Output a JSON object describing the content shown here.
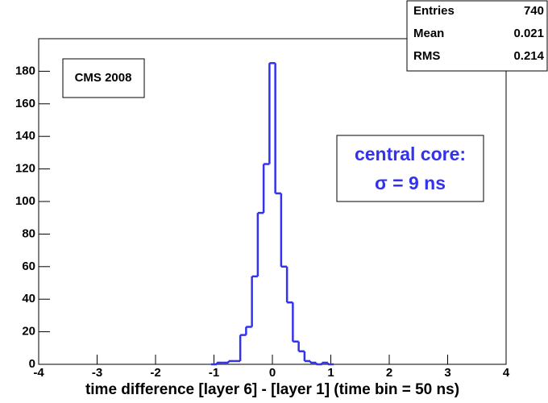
{
  "chart_data": {
    "type": "histogram",
    "x_label": "time difference [layer 6] - [layer 1] (time bin = 50 ns)",
    "bins": [
      -1.05,
      -0.95,
      -0.85,
      -0.75,
      -0.65,
      -0.55,
      -0.45,
      -0.35,
      -0.25,
      -0.15,
      -0.05,
      0.05,
      0.15,
      0.25,
      0.35,
      0.45,
      0.55,
      0.65,
      0.75,
      0.85,
      0.95,
      1.05
    ],
    "values": [
      0,
      1,
      1,
      2,
      2,
      18,
      23,
      54,
      93,
      123,
      185,
      105,
      60,
      38,
      14,
      8,
      2,
      1,
      0,
      1,
      0
    ],
    "color": "#3333ee",
    "xlim": [
      -4,
      4
    ],
    "xticks": [
      -4,
      -3,
      -2,
      -1,
      0,
      1,
      2,
      3,
      4
    ],
    "ylim": [
      0,
      200
    ],
    "yticks": [
      0,
      20,
      40,
      60,
      80,
      100,
      120,
      140,
      160,
      180
    ],
    "stats": {
      "labels": [
        "Entries",
        "Mean",
        "RMS"
      ],
      "values": [
        740,
        0.021,
        0.214
      ]
    },
    "annotations": [
      "CMS 2008",
      "central core:",
      "σ = 9 ns"
    ]
  }
}
